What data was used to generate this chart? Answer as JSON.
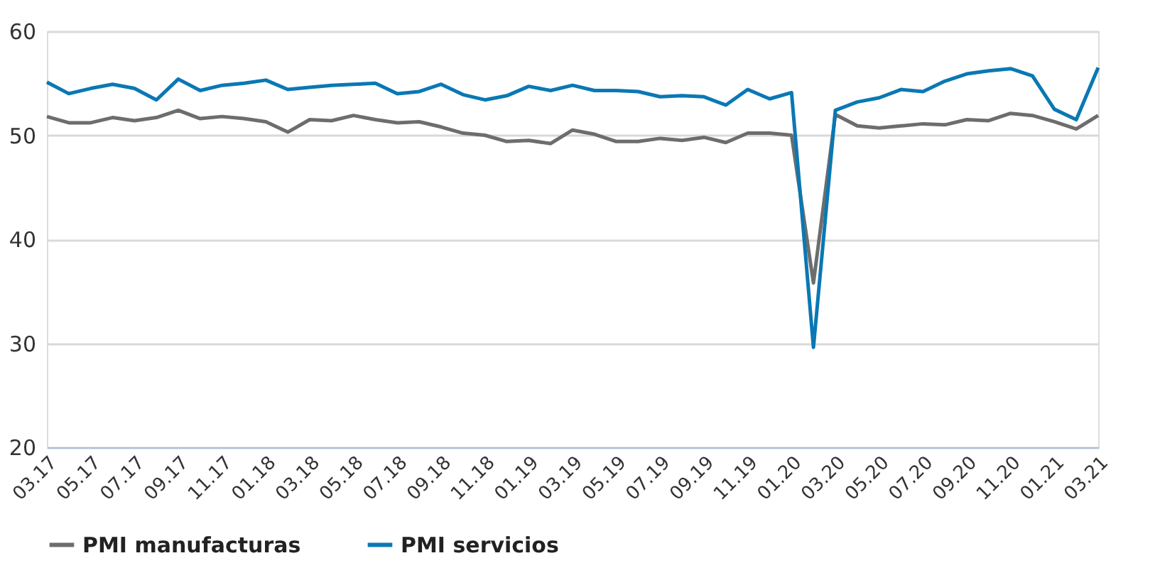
{
  "chart_data": {
    "type": "line",
    "categories": [
      "03.17",
      null,
      "05.17",
      null,
      "07.17",
      null,
      "09.17",
      null,
      "11.17",
      null,
      "01.18",
      null,
      "03.18",
      null,
      "05.18",
      null,
      "07.18",
      null,
      "09.18",
      null,
      "11.18",
      null,
      "01.19",
      null,
      "03.19",
      null,
      "05.19",
      null,
      "07.19",
      null,
      "09.19",
      null,
      "11.19",
      null,
      "01.20",
      null,
      "03.20",
      null,
      "05.20",
      null,
      "07.20",
      null,
      "09.20",
      null,
      "11.20",
      null,
      "01.21",
      null,
      "03.21"
    ],
    "series": [
      {
        "name": "PMI manufacturas",
        "color": "#6d6d6d",
        "values": [
          51.8,
          51.2,
          51.2,
          51.7,
          51.4,
          51.7,
          52.4,
          51.6,
          51.8,
          51.6,
          51.3,
          50.3,
          51.5,
          51.4,
          51.9,
          51.5,
          51.2,
          51.3,
          50.8,
          50.2,
          50.0,
          49.4,
          49.5,
          49.2,
          50.5,
          50.1,
          49.4,
          49.4,
          49.7,
          49.5,
          49.8,
          49.3,
          50.2,
          50.2,
          50.0,
          35.8,
          52.0,
          50.9,
          50.7,
          50.9,
          51.1,
          51.0,
          51.5,
          51.4,
          52.1,
          51.9,
          51.3,
          50.6,
          51.9
        ]
      },
      {
        "name": "PMI servicios",
        "color": "#0a78b4",
        "values": [
          55.1,
          54.0,
          54.5,
          54.9,
          54.5,
          53.4,
          55.4,
          54.3,
          54.8,
          55.0,
          55.3,
          54.4,
          54.6,
          54.8,
          54.9,
          55.0,
          54.0,
          54.2,
          54.9,
          53.9,
          53.4,
          53.8,
          54.7,
          54.3,
          54.8,
          54.3,
          54.3,
          54.2,
          53.7,
          53.8,
          53.7,
          52.9,
          54.4,
          53.5,
          54.1,
          29.6,
          52.4,
          53.2,
          53.6,
          54.4,
          54.2,
          55.2,
          55.9,
          56.2,
          56.4,
          55.7,
          52.5,
          51.5,
          56.5
        ]
      }
    ],
    "ylim": [
      20,
      60
    ],
    "yticks": [
      20,
      30,
      40,
      50,
      60
    ],
    "grid": "y",
    "legend": "bottom",
    "marker": "none",
    "line_style": "solid"
  }
}
